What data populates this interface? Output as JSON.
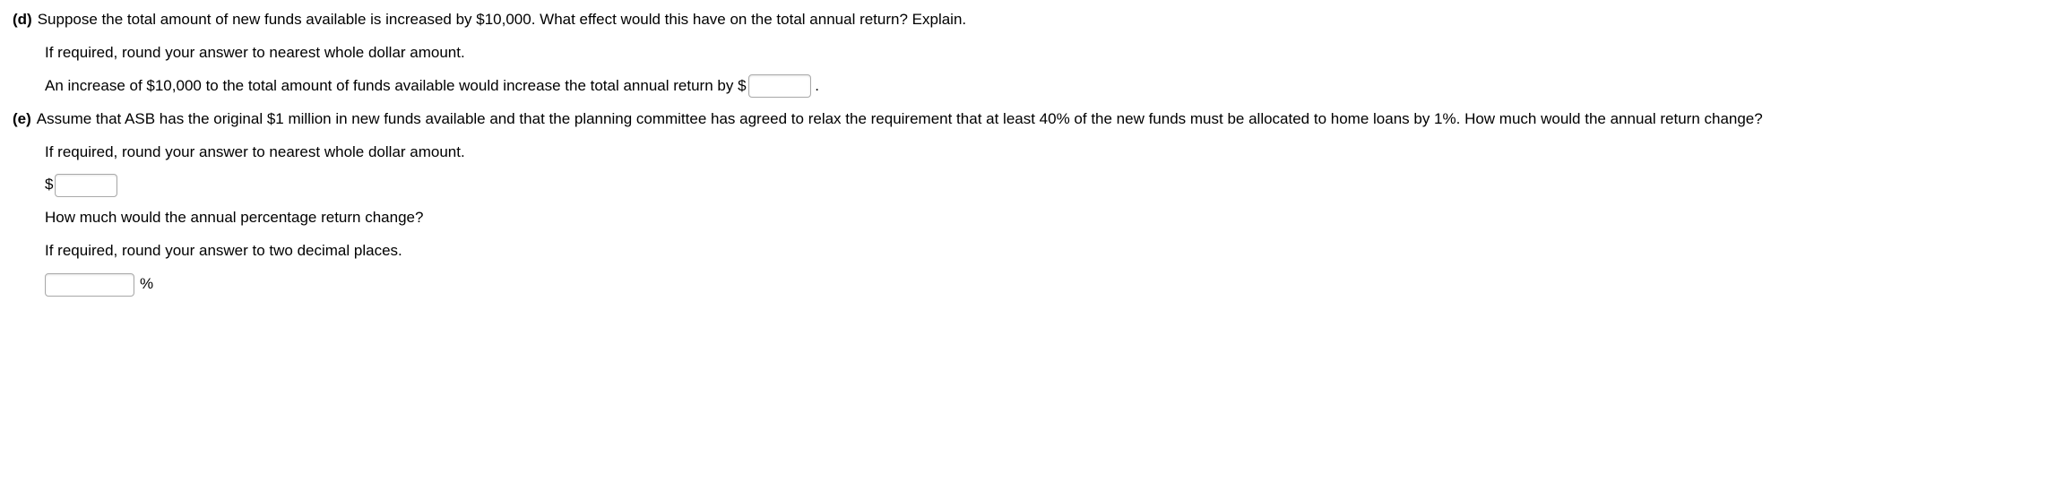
{
  "partD": {
    "label": "(d)",
    "prompt": "Suppose the total amount of new funds available is increased by $10,000. What effect would this have on the total annual return? Explain.",
    "instruction": "If required, round your answer to nearest whole dollar amount.",
    "sentence_before": "An increase of $10,000 to the total amount of funds available would increase the total annual return by ",
    "currency_symbol": "$",
    "sentence_after": " ."
  },
  "partE": {
    "label": "(e)",
    "prompt": "Assume that ASB has the original $1 million in new funds available and that the planning committee has agreed to relax the requirement that at least 40% of the new funds must be allocated to home loans by 1%. How much would the annual return change?",
    "instruction1": "If required, round your answer to nearest whole dollar amount.",
    "currency_symbol": "$",
    "question2": "How much would the annual percentage return change?",
    "instruction2": "If required, round your answer to two decimal places.",
    "percent_symbol": "%"
  }
}
